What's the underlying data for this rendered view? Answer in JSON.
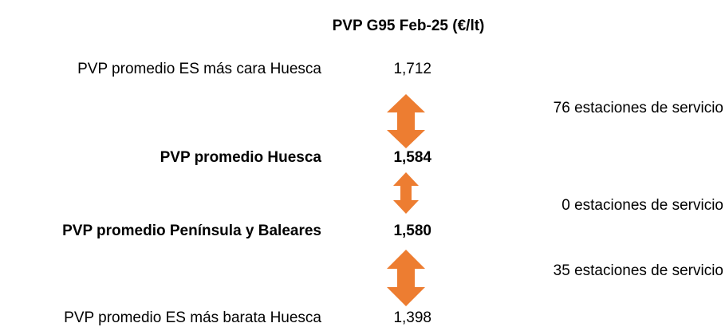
{
  "title": "PVP G95 Feb-25 (€/lt)",
  "rows": [
    {
      "label": "PVP promedio ES más cara Huesca",
      "value": "1,712"
    },
    {
      "label": "PVP promedio Huesca",
      "value": "1,584"
    },
    {
      "label": "PVP promedio Península y Baleares",
      "value": "1,580"
    },
    {
      "label": "PVP promedio ES más barata Huesca",
      "value": "1,398"
    }
  ],
  "notes": [
    "76 estaciones de servicio",
    "0 estaciones de servicio",
    "35 estaciones de servicio"
  ]
}
